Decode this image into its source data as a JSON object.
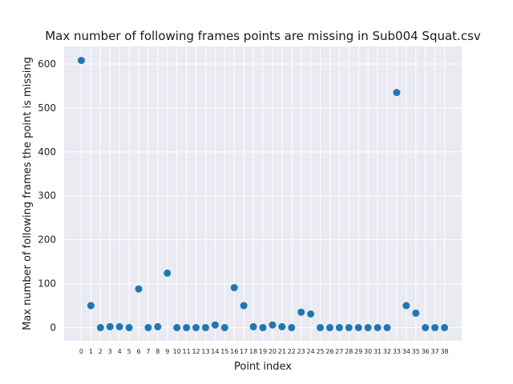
{
  "chart_data": {
    "type": "scatter",
    "title": "Max number of following frames points are missing in Sub004 Squat.csv",
    "xlabel": "Point index",
    "ylabel": "Max number of following frames the point is missing",
    "x": [
      0,
      1,
      2,
      3,
      4,
      5,
      6,
      7,
      8,
      9,
      10,
      11,
      12,
      13,
      14,
      15,
      16,
      17,
      18,
      19,
      20,
      21,
      22,
      23,
      24,
      25,
      26,
      27,
      28,
      29,
      30,
      31,
      32,
      33,
      34,
      35,
      36,
      37,
      38
    ],
    "y": [
      608,
      50,
      0,
      2,
      2,
      0,
      88,
      0,
      2,
      124,
      0,
      0,
      0,
      0,
      6,
      0,
      91,
      50,
      2,
      0,
      6,
      2,
      0,
      35,
      31,
      0,
      0,
      0,
      0,
      0,
      0,
      0,
      0,
      535,
      50,
      33,
      0,
      0,
      0
    ],
    "yticks": [
      0,
      100,
      200,
      300,
      400,
      500,
      600
    ],
    "ylim": [
      -30,
      640
    ],
    "xlim": [
      -1.8,
      39.8
    ],
    "grid": true,
    "colors": {
      "marker": "#1f77b4",
      "plot_background": "#eaeaf2",
      "grid": "#ffffff"
    }
  }
}
